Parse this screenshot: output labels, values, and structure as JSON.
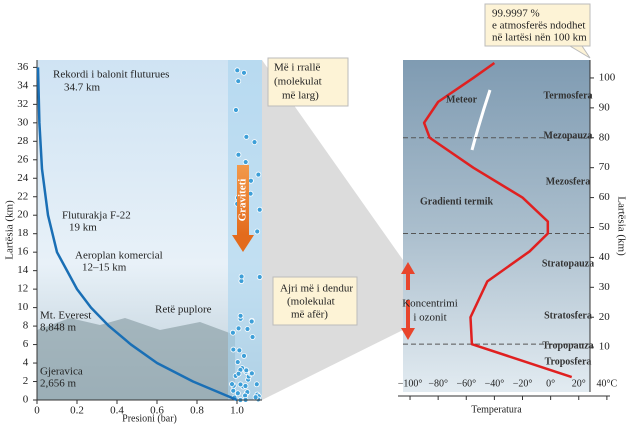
{
  "chart_data": [
    {
      "type": "line",
      "xlabel": "Presioni (bar)",
      "ylabel": "Lartësia (km)",
      "xlim": [
        0,
        1.125
      ],
      "ylim": [
        0,
        36.8
      ],
      "xticks": [
        0,
        0.2,
        0.4,
        0.6,
        0.8,
        {
          "value": 1,
          "label": "1.0"
        }
      ],
      "yticks": [
        0,
        2,
        4,
        6,
        8,
        10,
        12,
        14,
        16,
        18,
        20,
        22,
        24,
        26,
        28,
        30,
        32,
        34,
        36
      ],
      "x": [
        1,
        0.78,
        0.6,
        0.47,
        0.36,
        0.27,
        0.2,
        0.15,
        0.1,
        0.055,
        0.025,
        0.012,
        0.005
      ],
      "series": [
        {
          "color": "#1a6fb5",
          "values": [
            0,
            2,
            4,
            6,
            8,
            10,
            12,
            14,
            16,
            20,
            25,
            30,
            36
          ]
        }
      ],
      "annotations": [
        "Rekordi i balonit fluturues",
        "34.7 km",
        "Fluturakja F-22",
        "19 km",
        "Aeroplan komercial",
        "12–15 km",
        "Mt. Everest",
        "8,848 m",
        "Retë puplore",
        "Gjeravica",
        "2,656 m",
        "Graviteti",
        "Më i rrallë",
        "(molekulat",
        "më larg)",
        "Ajri më i dendur",
        "(molekulat",
        "më afër)"
      ]
    },
    {
      "type": "line",
      "xlabel": "Temperatura",
      "ylabel": "Lartësia (km)",
      "xlim": [
        -105,
        28
      ],
      "ylim": [
        -5,
        106
      ],
      "xticks": [
        {
          "value": -100,
          "label": "−100°"
        },
        {
          "value": -80,
          "label": "−80°"
        },
        {
          "value": -60,
          "label": "−60°"
        },
        {
          "value": -40,
          "label": "−40°"
        },
        {
          "value": -20,
          "label": "−20°"
        },
        {
          "value": 0,
          "label": "0°"
        },
        {
          "value": 20,
          "label": "20°"
        },
        {
          "value": 40,
          "label": "40°C"
        }
      ],
      "yticks": [
        10,
        20,
        30,
        40,
        50,
        60,
        70,
        80,
        90,
        100
      ],
      "x": [
        15,
        -56,
        -57,
        -45,
        -15,
        -2,
        -2,
        -20,
        -55,
        -86,
        -90,
        -80,
        -55,
        -40
      ],
      "series": [
        {
          "color": "#e02020",
          "values": [
            0,
            11,
            20,
            32,
            42,
            48,
            52,
            60,
            70,
            80,
            85,
            92,
            100,
            105
          ]
        }
      ],
      "boundaries": [
        80,
        48,
        11
      ],
      "annotations": [
        "Termosfera",
        "Mezopauza",
        "Mezosfera",
        "Stratopauza",
        "Stratosfera",
        "Tropopauza",
        "Troposfera",
        "Meteor",
        "Gradienti termik",
        "Koncentrimi",
        "i ozonit",
        "99.9997 %",
        "e atmosferës ndodhet",
        "në lartësi nën 100 km"
      ]
    }
  ]
}
